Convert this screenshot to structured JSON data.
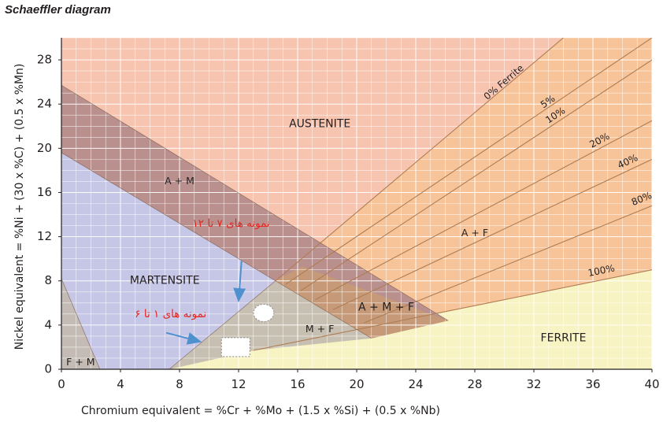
{
  "chart_data": {
    "type": "area",
    "title": "Schaeffler diagram",
    "xlabel": "Chromium equivalent = %Cr + %Mo + (1.5 x %Si) + (0.5 x %Nb)",
    "ylabel": "Nickel equivalent = %Ni + (30 x %C) + (0.5 x %Mn)",
    "xlim": [
      0,
      40
    ],
    "ylim": [
      0,
      30
    ],
    "x_ticks": [
      0,
      4,
      8,
      12,
      16,
      20,
      24,
      28,
      32,
      36,
      40
    ],
    "y_ticks": [
      0,
      4,
      8,
      12,
      16,
      20,
      24,
      28
    ],
    "grid": true,
    "colors": {
      "austenite": "#f7c4b0",
      "martensite": "#c6c6e6",
      "ferrite": "#f8f3c2",
      "a_plus_m": "#b9908d",
      "m_plus_f": "#c7bfb1",
      "a_plus_m_plus_f": "#c69a78",
      "a_plus_f": "#f7c49a",
      "f_plus_m": "#c4bcb4",
      "iso_lines": "#b07d52",
      "boundary": "#7a5c4c",
      "annotation_text": "#e3261f",
      "arrow": "#4f90cf"
    },
    "region_labels": [
      {
        "text": "AUSTENITE",
        "x": 17.5,
        "y": 22.2
      },
      {
        "text": "A + M",
        "x": 8.0,
        "y": 17.0
      },
      {
        "text": "MARTENSITE",
        "x": 7.0,
        "y": 8.0
      },
      {
        "text": "A + F",
        "x": 28.0,
        "y": 12.3
      },
      {
        "text": "A + M + F",
        "x": 22.0,
        "y": 5.6
      },
      {
        "text": "M + F",
        "x": 17.5,
        "y": 3.6
      },
      {
        "text": "FERRITE",
        "x": 34.0,
        "y": 2.8
      },
      {
        "text": "F + M",
        "x": 1.3,
        "y": 0.6
      }
    ],
    "ferrite_iso_lines": [
      {
        "label": "0% Ferrite",
        "from": [
          14.5,
          8.0
        ],
        "to": [
          34.0,
          30.0
        ]
      },
      {
        "label": "5%",
        "from": [
          15.2,
          7.7
        ],
        "to": [
          40.0,
          30.0
        ]
      },
      {
        "label": "10%",
        "from": [
          16.2,
          7.1
        ],
        "to": [
          40.0,
          28.0
        ]
      },
      {
        "label": "20%",
        "from": [
          17.2,
          6.3
        ],
        "to": [
          40.0,
          22.5
        ]
      },
      {
        "label": "40%",
        "from": [
          18.4,
          5.4
        ],
        "to": [
          40.0,
          19.0
        ]
      },
      {
        "label": "80%",
        "from": [
          20.5,
          4.2
        ],
        "to": [
          40.0,
          14.8
        ]
      },
      {
        "label": "100%",
        "from": [
          13.0,
          1.7
        ],
        "to": [
          40.0,
          9.0
        ]
      }
    ],
    "annotations": [
      {
        "text": "نمونه های ۷ تا ۱۲",
        "arrow_to": [
          12.0,
          6.2
        ],
        "marker": "ellipse",
        "marker_at": [
          13.7,
          5.1
        ]
      },
      {
        "text": "نمونه های ۱ تا ۶",
        "arrow_to": [
          9.4,
          2.5
        ],
        "marker": "rect",
        "marker_at": [
          11.8,
          2.0
        ]
      }
    ]
  }
}
